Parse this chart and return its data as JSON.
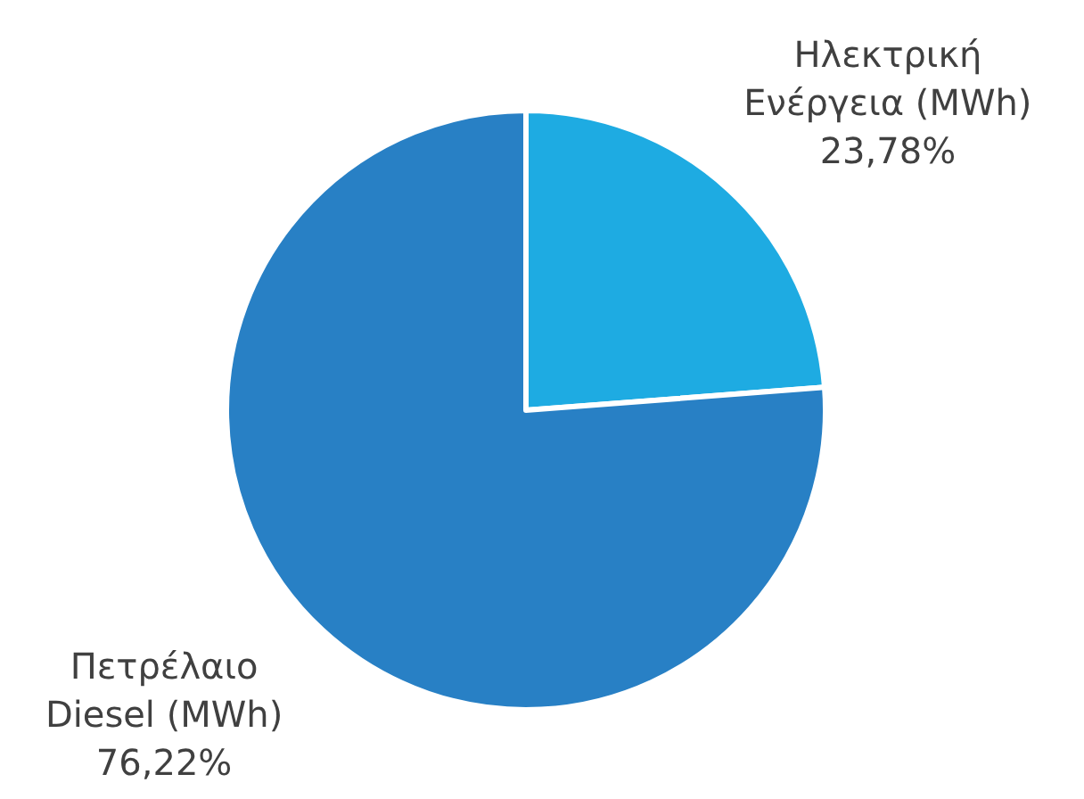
{
  "chart_data": {
    "type": "pie",
    "categories": [
      "Ηλεκτρική Ενέργεια (MWh)",
      "Πετρέλαιο Diesel (MWh)"
    ],
    "values": [
      23.78,
      76.22
    ],
    "colors": [
      "#1eabe2",
      "#2880c5"
    ],
    "value_labels": [
      "23,78%",
      "76,22%"
    ]
  }
}
